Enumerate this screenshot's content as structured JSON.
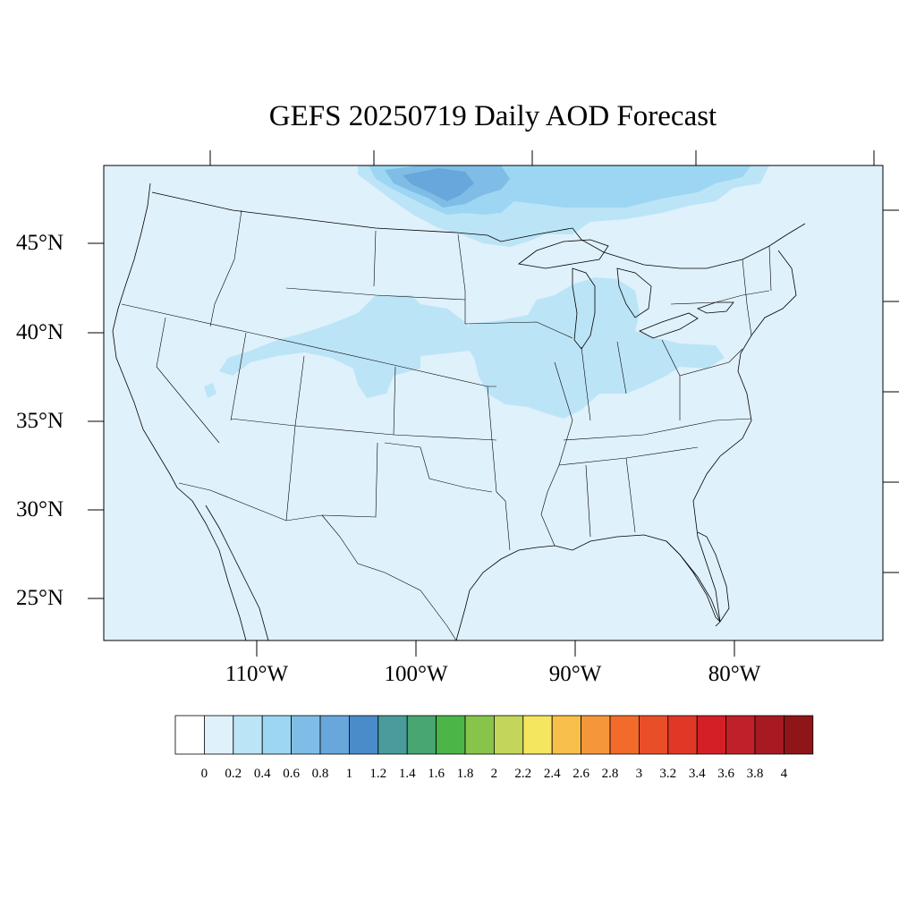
{
  "title": "GEFS 20250719 Daily AOD Forecast",
  "map": {
    "region": "Contiguous United States",
    "lat_labels": [
      "45°N",
      "40°N",
      "35°N",
      "30°N",
      "25°N"
    ],
    "lon_labels": [
      "110°W",
      "100°W",
      "90°W",
      "80°W"
    ],
    "background_aod_class": "0.0–0.2"
  },
  "colorbar": {
    "levels": [
      "0",
      "0.2",
      "0.4",
      "0.6",
      "0.8",
      "1",
      "1.2",
      "1.4",
      "1.6",
      "1.8",
      "2",
      "2.2",
      "2.4",
      "2.6",
      "2.8",
      "3",
      "3.2",
      "3.4",
      "3.6",
      "3.8",
      "4"
    ],
    "colors": [
      "#ffffff",
      "#dff1fb",
      "#bce4f7",
      "#9dd6f3",
      "#7fbde6",
      "#68a7dc",
      "#4a8bc9",
      "#4a9c9c",
      "#47a672",
      "#4bb547",
      "#86c44a",
      "#c4d65a",
      "#f4e65e",
      "#f8c04b",
      "#f6963b",
      "#f26b2a",
      "#e84f29",
      "#e03827",
      "#d51f26",
      "#c0202a",
      "#a81a22",
      "#8f1519"
    ]
  },
  "chart_data": {
    "type": "heatmap",
    "title": "GEFS 20250719 Daily AOD Forecast",
    "variable": "AOD",
    "contour_levels": [
      0,
      0.2,
      0.4,
      0.6,
      0.8,
      1,
      1.2,
      1.4,
      1.6,
      1.8,
      2,
      2.2,
      2.4,
      2.6,
      2.8,
      3,
      3.2,
      3.4,
      3.6,
      3.8,
      4
    ],
    "lon_range": [
      -119,
      -70
    ],
    "lat_range": [
      23,
      49.5
    ],
    "features": [
      {
        "region": "Southern Canada (Manitoba/Ontario, north of MN)",
        "aod": "0.6–1.0"
      },
      {
        "region": "Canada north of Great Lakes / Quebec",
        "aod": "0.4–0.6"
      },
      {
        "region": "Nebraska / Kansas / Colorado / Utah band",
        "aod": "0.2–0.4"
      },
      {
        "region": "Iowa / Missouri / Illinois / Indiana / Ohio",
        "aod": "0.2–0.4"
      },
      {
        "region": "Michigan / Wisconsin / Great Lakes",
        "aod": "0.2–0.4"
      },
      {
        "region": "Remainder of domain",
        "aod": "0.0–0.2"
      }
    ]
  }
}
